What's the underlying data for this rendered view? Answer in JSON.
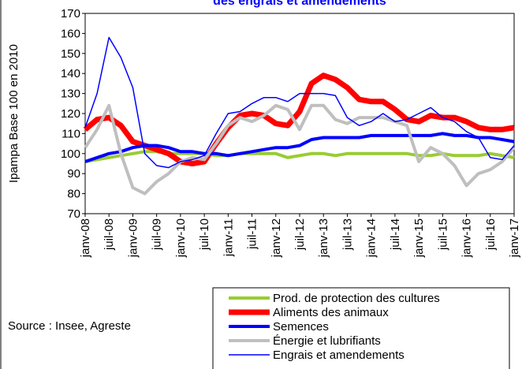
{
  "chart_data": {
    "type": "line",
    "title": "des engrais et amendements",
    "ylabel": "Ipampa Base 100 en 2010",
    "source": "Source : Insee, Agreste",
    "categories": [
      "janv-08",
      null,
      "juil-08",
      null,
      "janv-09",
      null,
      "juil-09",
      null,
      "janv-10",
      null,
      "juil-10",
      null,
      "janv-11",
      null,
      "juil-11",
      null,
      "janv-12",
      null,
      "juil-12",
      null,
      "janv-13",
      null,
      "juil-13",
      null,
      "janv-14",
      null,
      "juil-14",
      null,
      "janv-15",
      null,
      "juil-15",
      null,
      "janv-16",
      null,
      "juil-16",
      null,
      "janv-17"
    ],
    "ylim": [
      70,
      170
    ],
    "yticks": [
      70,
      80,
      90,
      100,
      110,
      120,
      130,
      140,
      150,
      160,
      170
    ],
    "grid": false,
    "series": [
      {
        "name": "Prod. de protection des cultures",
        "color": "#99cc33",
        "width": 4,
        "values": [
          96,
          97,
          98,
          99,
          100,
          101,
          101,
          100,
          100,
          100,
          100,
          99,
          99,
          100,
          100,
          100,
          100,
          98,
          99,
          100,
          100,
          99,
          100,
          100,
          100,
          100,
          100,
          100,
          99,
          99,
          100,
          99,
          99,
          99,
          100,
          99,
          98
        ]
      },
      {
        "name": "Aliments des animaux",
        "color": "#ff0000",
        "width": 7,
        "values": [
          112,
          117,
          118,
          114,
          106,
          104,
          102,
          100,
          96,
          95,
          96,
          105,
          113,
          119,
          120,
          119,
          115,
          114,
          121,
          135,
          139,
          137,
          133,
          127,
          126,
          126,
          122,
          117,
          116,
          119,
          118,
          118,
          116,
          113,
          112,
          112,
          113
        ]
      },
      {
        "name": "Semences",
        "color": "#0000ff",
        "width": 4,
        "values": [
          96,
          98,
          100,
          101,
          103,
          104,
          104,
          103,
          101,
          101,
          100,
          100,
          99,
          100,
          101,
          102,
          103,
          103,
          104,
          107,
          108,
          108,
          108,
          108,
          109,
          109,
          109,
          109,
          109,
          109,
          110,
          109,
          109,
          108,
          108,
          107,
          106
        ]
      },
      {
        "name": "Énergie et lubrifiants",
        "color": "#bfbfbf",
        "width": 4,
        "values": [
          103,
          112,
          124,
          100,
          83,
          80,
          86,
          90,
          96,
          98,
          97,
          105,
          114,
          118,
          116,
          119,
          124,
          122,
          112,
          124,
          124,
          117,
          115,
          118,
          118,
          118,
          116,
          114,
          96,
          103,
          100,
          94,
          84,
          90,
          92,
          96,
          103
        ]
      },
      {
        "name": "Engrais et amendements",
        "color": "#0000ff",
        "width": 1.5,
        "values": [
          113,
          130,
          158,
          148,
          133,
          100,
          94,
          93,
          96,
          97,
          99,
          110,
          120,
          121,
          125,
          128,
          128,
          126,
          130,
          130,
          130,
          129,
          118,
          114,
          116,
          120,
          116,
          117,
          120,
          123,
          118,
          116,
          111,
          108,
          98,
          97,
          104
        ]
      }
    ]
  }
}
